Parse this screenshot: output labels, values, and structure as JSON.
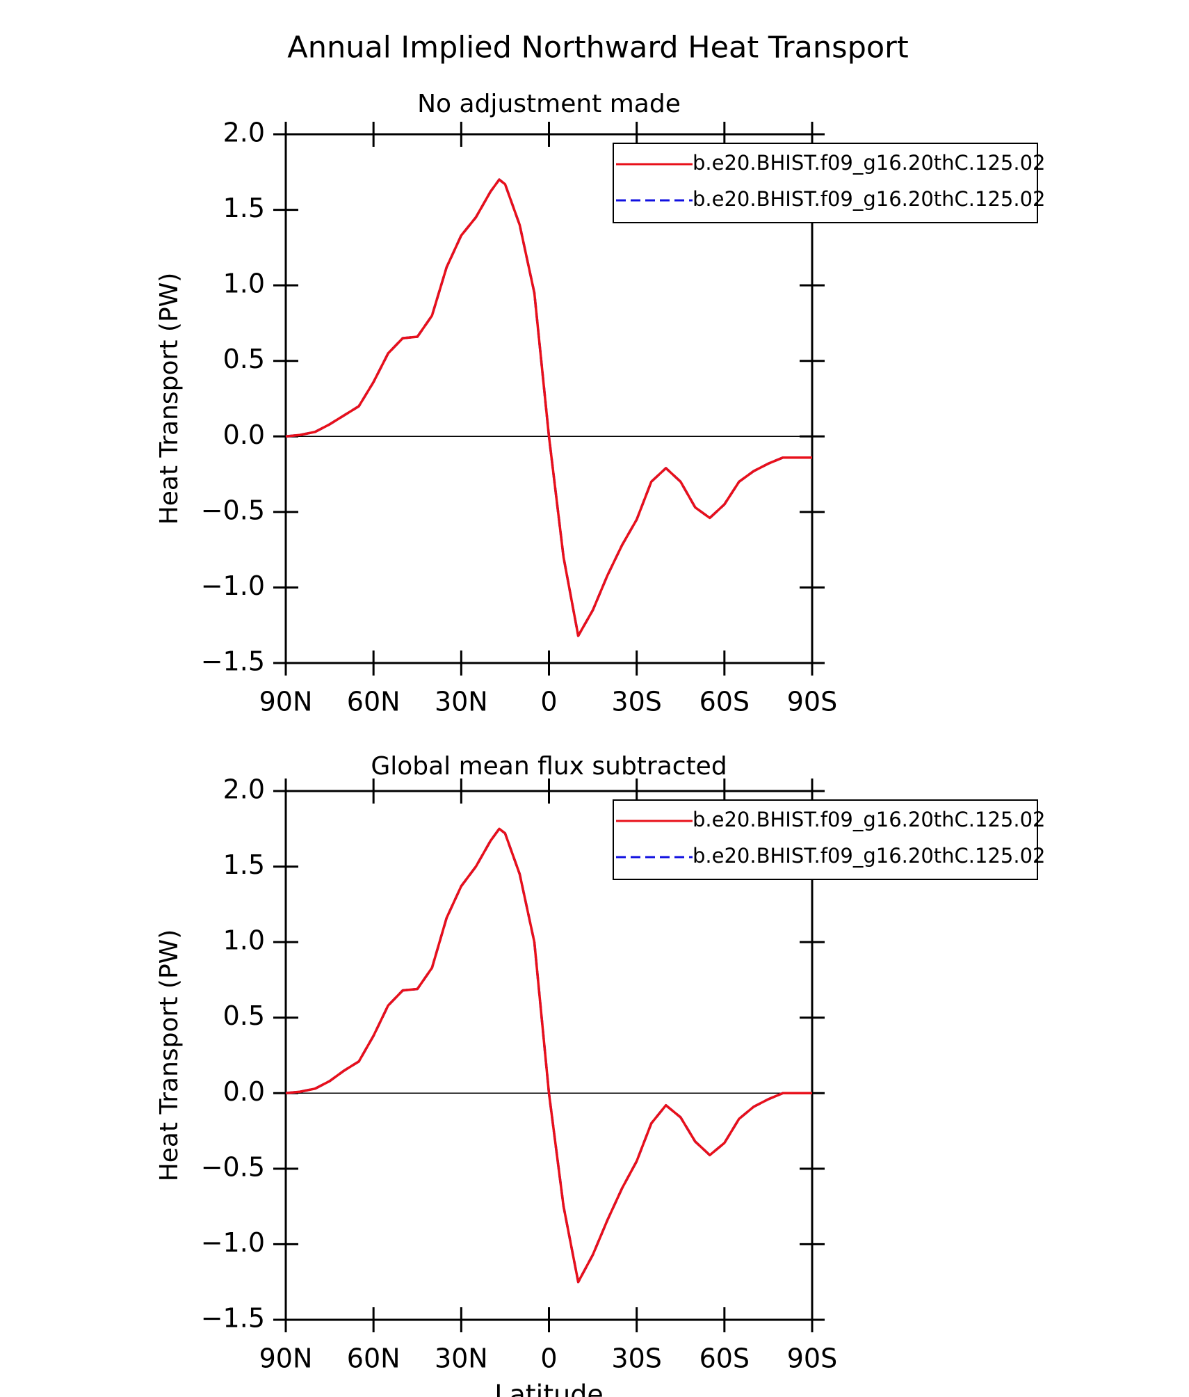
{
  "title": "Annual Implied Northward Heat Transport",
  "chart_data": [
    {
      "type": "line",
      "subtitle": "No adjustment made",
      "ylabel": "Heat Transport (PW)",
      "x": [
        90,
        85,
        80,
        75,
        70,
        65,
        60,
        55,
        50,
        45,
        40,
        35,
        30,
        25,
        20,
        17,
        15,
        10,
        5,
        0,
        -5,
        -10,
        -15,
        -20,
        -25,
        -30,
        -35,
        -40,
        -45,
        -50,
        -55,
        -60,
        -65,
        -70,
        -75,
        -80,
        -85,
        -90
      ],
      "series": [
        {
          "name": "b.e20.BHIST.f09_g16.20thC.125.02",
          "color": "#e8101a",
          "dash": "solid",
          "values": [
            0,
            0.01,
            0.03,
            0.08,
            0.14,
            0.2,
            0.36,
            0.55,
            0.65,
            0.66,
            0.8,
            1.12,
            1.33,
            1.45,
            1.62,
            1.7,
            1.67,
            1.4,
            0.95,
            0,
            -0.8,
            -1.32,
            -1.15,
            -0.92,
            -0.72,
            -0.55,
            -0.3,
            -0.21,
            -0.3,
            -0.47,
            -0.54,
            -0.45,
            -0.3,
            -0.23,
            -0.18,
            -0.14,
            -0.14,
            -0.14
          ]
        },
        {
          "name": "b.e20.BHIST.f09_g16.20thC.125.02",
          "color": "#1010e0",
          "dash": "dashed",
          "values": [
            0,
            0.01,
            0.03,
            0.08,
            0.14,
            0.2,
            0.36,
            0.55,
            0.65,
            0.66,
            0.8,
            1.12,
            1.33,
            1.45,
            1.62,
            1.7,
            1.67,
            1.4,
            0.95,
            0,
            -0.8,
            -1.32,
            -1.15,
            -0.92,
            -0.72,
            -0.55,
            -0.3,
            -0.21,
            -0.3,
            -0.47,
            -0.54,
            -0.45,
            -0.3,
            -0.23,
            -0.18,
            -0.14,
            -0.14,
            -0.14
          ]
        }
      ],
      "xlim": [
        90,
        -90
      ],
      "xticks": [
        {
          "value": 90,
          "label": "90N"
        },
        {
          "value": 60,
          "label": "60N"
        },
        {
          "value": 30,
          "label": "30N"
        },
        0,
        {
          "value": -30,
          "label": "30S"
        },
        {
          "value": -60,
          "label": "60S"
        },
        {
          "value": -90,
          "label": "90S"
        }
      ],
      "ylim": [
        -1.5,
        2
      ],
      "yticks": [
        {
          "value": -1.5,
          "label": "−1.5"
        },
        {
          "value": -1,
          "label": "−1.0"
        },
        {
          "value": -0.5,
          "label": "−0.5"
        },
        {
          "value": 0,
          "label": "0.0"
        },
        {
          "value": 0.5,
          "label": "0.5"
        },
        {
          "value": 1,
          "label": "1.0"
        },
        {
          "value": 1.5,
          "label": "1.5"
        },
        {
          "value": 2,
          "label": "2.0"
        }
      ],
      "zero_line": true,
      "legend": "upper right"
    },
    {
      "type": "line",
      "subtitle": "Global mean flux subtracted",
      "ylabel": "Heat Transport (PW)",
      "xlabel": "Latitude",
      "x": [
        90,
        85,
        80,
        75,
        70,
        65,
        60,
        55,
        50,
        45,
        40,
        35,
        30,
        25,
        20,
        17,
        15,
        10,
        5,
        0,
        -5,
        -10,
        -15,
        -20,
        -25,
        -30,
        -35,
        -40,
        -45,
        -50,
        -55,
        -60,
        -65,
        -70,
        -75,
        -80,
        -85,
        -90
      ],
      "series": [
        {
          "name": "b.e20.BHIST.f09_g16.20thC.125.02",
          "color": "#e8101a",
          "dash": "solid",
          "values": [
            0,
            0.01,
            0.03,
            0.08,
            0.15,
            0.21,
            0.38,
            0.58,
            0.68,
            0.69,
            0.83,
            1.16,
            1.37,
            1.5,
            1.67,
            1.75,
            1.72,
            1.45,
            1.0,
            0,
            -0.75,
            -1.25,
            -1.07,
            -0.84,
            -0.63,
            -0.45,
            -0.2,
            -0.08,
            -0.16,
            -0.32,
            -0.41,
            -0.33,
            -0.17,
            -0.09,
            -0.04,
            0,
            0,
            0
          ]
        },
        {
          "name": "b.e20.BHIST.f09_g16.20thC.125.02",
          "color": "#1010e0",
          "dash": "dashed",
          "values": [
            0,
            0.01,
            0.03,
            0.08,
            0.15,
            0.21,
            0.38,
            0.58,
            0.68,
            0.69,
            0.83,
            1.16,
            1.37,
            1.5,
            1.67,
            1.75,
            1.72,
            1.45,
            1.0,
            0,
            -0.75,
            -1.25,
            -1.07,
            -0.84,
            -0.63,
            -0.45,
            -0.2,
            -0.08,
            -0.16,
            -0.32,
            -0.41,
            -0.33,
            -0.17,
            -0.09,
            -0.04,
            0,
            0,
            0
          ]
        }
      ],
      "xlim": [
        90,
        -90
      ],
      "xticks": [
        {
          "value": 90,
          "label": "90N"
        },
        {
          "value": 60,
          "label": "60N"
        },
        {
          "value": 30,
          "label": "30N"
        },
        0,
        {
          "value": -30,
          "label": "30S"
        },
        {
          "value": -60,
          "label": "60S"
        },
        {
          "value": -90,
          "label": "90S"
        }
      ],
      "ylim": [
        -1.5,
        2
      ],
      "yticks": [
        {
          "value": -1.5,
          "label": "−1.5"
        },
        {
          "value": -1,
          "label": "−1.0"
        },
        {
          "value": -0.5,
          "label": "−0.5"
        },
        {
          "value": 0,
          "label": "0.0"
        },
        {
          "value": 0.5,
          "label": "0.5"
        },
        {
          "value": 1,
          "label": "1.0"
        },
        {
          "value": 1.5,
          "label": "1.5"
        },
        {
          "value": 2,
          "label": "2.0"
        }
      ],
      "zero_line": true,
      "legend": "upper right"
    }
  ]
}
